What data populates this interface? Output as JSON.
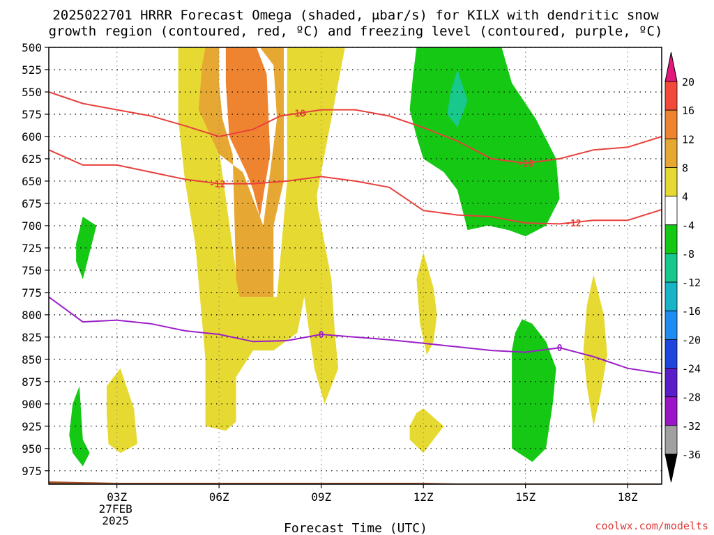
{
  "title_line1": "2025022701 HRRR Forecast Omega (shaded, μbar/s) for KILX with dendritic snow",
  "title_line2": "growth region (contoured, red, ºC) and freezing level (contoured, purple, ºC)",
  "credit": "coolwx.com/modelts",
  "chart_data": {
    "type": "contour",
    "xlabel": "Forecast Time (UTC)",
    "ylabel": "",
    "x_range_hours_utc": [
      1,
      19
    ],
    "x_ticks": [
      {
        "hour": 3,
        "label": "03Z",
        "sublabels": [
          "27FEB",
          "2025"
        ]
      },
      {
        "hour": 6,
        "label": "06Z",
        "sublabels": []
      },
      {
        "hour": 9,
        "label": "09Z",
        "sublabels": []
      },
      {
        "hour": 12,
        "label": "12Z",
        "sublabels": []
      },
      {
        "hour": 15,
        "label": "15Z",
        "sublabels": []
      },
      {
        "hour": 18,
        "label": "18Z",
        "sublabels": []
      }
    ],
    "y_range_hpa": [
      500,
      990
    ],
    "y_ticks": [
      500,
      525,
      550,
      575,
      600,
      625,
      650,
      675,
      700,
      725,
      750,
      775,
      800,
      825,
      850,
      875,
      900,
      925,
      950,
      975
    ],
    "y_inverted": true,
    "grid": true,
    "colorbar": {
      "levels": [
        {
          "label": "20",
          "color": "#e0197a"
        },
        {
          "label": "16",
          "color": "#f24a3a"
        },
        {
          "label": "12",
          "color": "#ef8430"
        },
        {
          "label": "8",
          "color": "#e6a832"
        },
        {
          "label": "4",
          "color": "#e6da32"
        },
        {
          "label": "-4",
          "color": "#ffffff"
        },
        {
          "label": "-8",
          "color": "#14c814"
        },
        {
          "label": "-12",
          "color": "#19c88c"
        },
        {
          "label": "-16",
          "color": "#19b4c8"
        },
        {
          "label": "-20",
          "color": "#1e8cf0"
        },
        {
          "label": "-24",
          "color": "#1e46dc"
        },
        {
          "label": "-28",
          "color": "#5a1ec8"
        },
        {
          "label": "-32",
          "color": "#9a14c8"
        },
        {
          "label": "-36",
          "color": "#a0a0a0"
        }
      ],
      "top_arrow_color": "#e0197a",
      "bottom_arrow_color": "#000000"
    },
    "shaded_regions": [
      {
        "color": "#e6da32",
        "points": [
          [
            4.8,
            500
          ],
          [
            6.0,
            500
          ],
          [
            5.8,
            560
          ],
          [
            6.6,
            780
          ],
          [
            7.7,
            780
          ],
          [
            8.0,
            650
          ],
          [
            8.0,
            500
          ],
          [
            9.7,
            500
          ],
          [
            9.2,
            600
          ],
          [
            8.8,
            680
          ],
          [
            8.5,
            780
          ],
          [
            8.3,
            820
          ],
          [
            7.6,
            840
          ],
          [
            7.0,
            840
          ],
          [
            6.5,
            870
          ],
          [
            6.5,
            920
          ],
          [
            6.2,
            930
          ],
          [
            5.6,
            925
          ],
          [
            5.6,
            850
          ],
          [
            5.3,
            720
          ],
          [
            5.0,
            650
          ],
          [
            4.8,
            580
          ]
        ]
      },
      {
        "color": "#e6da32",
        "points": [
          [
            8.0,
            540
          ],
          [
            8.7,
            580
          ],
          [
            8.9,
            680
          ],
          [
            9.3,
            760
          ],
          [
            9.4,
            820
          ],
          [
            9.5,
            860
          ],
          [
            9.1,
            900
          ],
          [
            8.8,
            860
          ],
          [
            8.5,
            780
          ],
          [
            8.4,
            680
          ],
          [
            8.0,
            600
          ]
        ]
      },
      {
        "color": "#e6a832",
        "points": [
          [
            5.6,
            500
          ],
          [
            6.0,
            500
          ],
          [
            6.0,
            540
          ],
          [
            6.1,
            580
          ],
          [
            6.4,
            620
          ],
          [
            6.5,
            760
          ],
          [
            6.6,
            780
          ],
          [
            7.6,
            780
          ],
          [
            7.6,
            700
          ],
          [
            7.9,
            650
          ],
          [
            7.9,
            500
          ],
          [
            7.2,
            500
          ],
          [
            7.6,
            520
          ],
          [
            7.7,
            580
          ],
          [
            7.3,
            700
          ],
          [
            6.7,
            640
          ],
          [
            6.0,
            620
          ],
          [
            5.4,
            570
          ],
          [
            5.5,
            520
          ]
        ]
      },
      {
        "color": "#ef8430",
        "points": [
          [
            6.2,
            500
          ],
          [
            7.1,
            500
          ],
          [
            7.4,
            530
          ],
          [
            7.5,
            620
          ],
          [
            7.2,
            690
          ],
          [
            7.0,
            660
          ],
          [
            6.8,
            640
          ],
          [
            6.3,
            600
          ],
          [
            6.2,
            540
          ]
        ]
      },
      {
        "color": "#e6da32",
        "points": [
          [
            2.7,
            880
          ],
          [
            3.1,
            860
          ],
          [
            3.5,
            905
          ],
          [
            3.6,
            945
          ],
          [
            3.1,
            955
          ],
          [
            2.75,
            945
          ],
          [
            2.7,
            910
          ]
        ]
      },
      {
        "color": "#e6da32",
        "points": [
          [
            12.0,
            730
          ],
          [
            12.3,
            770
          ],
          [
            12.4,
            800
          ],
          [
            12.3,
            830
          ],
          [
            12.1,
            845
          ],
          [
            11.9,
            810
          ],
          [
            11.8,
            760
          ]
        ]
      },
      {
        "color": "#e6da32",
        "points": [
          [
            11.6,
            925
          ],
          [
            11.8,
            910
          ],
          [
            12.0,
            905
          ],
          [
            12.3,
            915
          ],
          [
            12.6,
            925
          ],
          [
            12.3,
            940
          ],
          [
            12.0,
            955
          ],
          [
            11.6,
            940
          ]
        ]
      },
      {
        "color": "#e6da32",
        "points": [
          [
            16.8,
            790
          ],
          [
            17.0,
            755
          ],
          [
            17.3,
            800
          ],
          [
            17.4,
            845
          ],
          [
            17.2,
            890
          ],
          [
            17.0,
            925
          ],
          [
            16.8,
            880
          ],
          [
            16.7,
            840
          ]
        ]
      },
      {
        "color": "#14c814",
        "points": [
          [
            11.8,
            500
          ],
          [
            13.1,
            500
          ],
          [
            14.3,
            500
          ],
          [
            14.6,
            540
          ],
          [
            15.3,
            580
          ],
          [
            15.9,
            625
          ],
          [
            16.0,
            670
          ],
          [
            15.6,
            700
          ],
          [
            15.0,
            712
          ],
          [
            14.5,
            705
          ],
          [
            13.9,
            700
          ],
          [
            13.3,
            705
          ],
          [
            13.0,
            660
          ],
          [
            12.6,
            640
          ],
          [
            12.0,
            625
          ],
          [
            11.8,
            600
          ],
          [
            11.6,
            570
          ],
          [
            11.7,
            530
          ]
        ]
      },
      {
        "color": "#19c88c",
        "points": [
          [
            13.0,
            525
          ],
          [
            13.3,
            560
          ],
          [
            13.0,
            590
          ],
          [
            12.7,
            575
          ],
          [
            12.8,
            550
          ]
        ]
      },
      {
        "color": "#14c814",
        "points": [
          [
            2.0,
            690
          ],
          [
            2.4,
            700
          ],
          [
            2.0,
            760
          ],
          [
            1.8,
            740
          ],
          [
            1.8,
            720
          ]
        ]
      },
      {
        "color": "#14c814",
        "points": [
          [
            1.9,
            880
          ],
          [
            2.0,
            940
          ],
          [
            2.2,
            955
          ],
          [
            2.0,
            970
          ],
          [
            1.7,
            955
          ],
          [
            1.6,
            935
          ],
          [
            1.7,
            900
          ]
        ]
      },
      {
        "color": "#14c814",
        "points": [
          [
            14.9,
            805
          ],
          [
            15.2,
            810
          ],
          [
            15.6,
            830
          ],
          [
            15.9,
            860
          ],
          [
            15.8,
            900
          ],
          [
            15.6,
            950
          ],
          [
            15.2,
            965
          ],
          [
            14.6,
            950
          ],
          [
            14.6,
            900
          ],
          [
            14.6,
            840
          ],
          [
            14.7,
            820
          ]
        ]
      }
    ],
    "contours": [
      {
        "color": "#e8403c",
        "label": "-18",
        "label_at": [
          8.3,
          574
        ],
        "points": [
          [
            1,
            550
          ],
          [
            2,
            563
          ],
          [
            3,
            570
          ],
          [
            4,
            577
          ],
          [
            5,
            588
          ],
          [
            6,
            600
          ],
          [
            7,
            592
          ],
          [
            7.8,
            577
          ],
          [
            9,
            570
          ],
          [
            10,
            570
          ],
          [
            11,
            577
          ],
          [
            12,
            590
          ],
          [
            13,
            605
          ],
          [
            14,
            625
          ],
          [
            15,
            630
          ],
          [
            16,
            625
          ],
          [
            17,
            615
          ],
          [
            18,
            612
          ],
          [
            19,
            600
          ]
        ]
      },
      {
        "color": "#e8403c",
        "label": "-12",
        "label_at": [
          5.95,
          653
        ],
        "points": [
          [
            1,
            615
          ],
          [
            2,
            632
          ],
          [
            3,
            632
          ],
          [
            4,
            640
          ],
          [
            5,
            648
          ],
          [
            6,
            653
          ],
          [
            7,
            653
          ],
          [
            8,
            650
          ],
          [
            9,
            645
          ],
          [
            10,
            650
          ],
          [
            11,
            657
          ],
          [
            12,
            683
          ],
          [
            13,
            688
          ],
          [
            14,
            690
          ],
          [
            15,
            697
          ],
          [
            16,
            698
          ],
          [
            17,
            694
          ],
          [
            18,
            694
          ],
          [
            19,
            682
          ]
        ]
      },
      {
        "color": "#9b1fc8",
        "label": "0",
        "label_at": [
          9.0,
          822
        ],
        "points": [
          [
            1,
            780
          ],
          [
            2,
            808
          ],
          [
            3,
            806
          ],
          [
            4,
            810
          ],
          [
            5,
            818
          ],
          [
            6,
            822
          ],
          [
            7,
            830
          ],
          [
            8,
            829
          ],
          [
            9,
            822
          ],
          [
            10,
            825
          ],
          [
            11,
            828
          ],
          [
            12,
            832
          ],
          [
            13,
            836
          ],
          [
            14,
            840
          ],
          [
            15,
            842
          ],
          [
            16,
            837
          ],
          [
            17,
            847
          ],
          [
            18,
            860
          ],
          [
            19,
            866
          ]
        ]
      }
    ],
    "terrain": {
      "color": "#a5522b",
      "top_hpa": 990
    }
  }
}
